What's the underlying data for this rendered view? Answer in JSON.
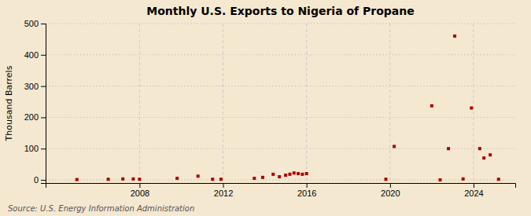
{
  "chart_data": {
    "type": "scatter",
    "title": "Monthly U.S. Exports to Nigeria of Propane",
    "ylabel": "Thousand Barrels",
    "annotations": [
      "Source: U.S. Energy Information Administration"
    ],
    "color": "#aa0000",
    "marker": "square",
    "grid": true,
    "xlim": [
      2003.5,
      2026.0
    ],
    "xticks": [
      2008,
      2012,
      2016,
      2020,
      2024
    ],
    "ylim": [
      -10,
      500
    ],
    "yticks": [
      0,
      100,
      200,
      300,
      400,
      500
    ],
    "x": [
      2005.0,
      2006.5,
      2007.2,
      2007.7,
      2008.0,
      2009.8,
      2010.8,
      2011.5,
      2011.9,
      2013.5,
      2013.9,
      2014.4,
      2014.7,
      2015.0,
      2015.2,
      2015.4,
      2015.6,
      2015.8,
      2016.0,
      2019.8,
      2020.2,
      2022.0,
      2022.4,
      2022.8,
      2023.1,
      2023.5,
      2023.9,
      2024.3,
      2024.5,
      2024.8,
      2025.2
    ],
    "values": [
      1,
      2,
      3,
      3,
      2,
      5,
      12,
      2,
      2,
      5,
      8,
      18,
      10,
      15,
      18,
      22,
      20,
      18,
      20,
      2,
      107,
      237,
      0,
      100,
      460,
      3,
      230,
      100,
      70,
      80,
      2
    ]
  }
}
